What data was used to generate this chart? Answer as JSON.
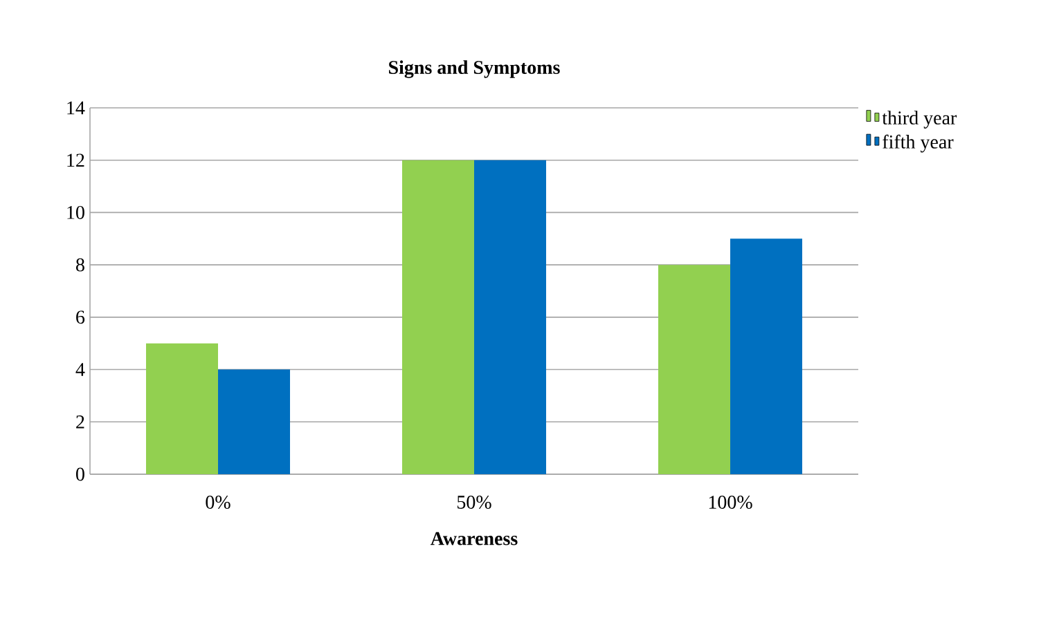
{
  "chart_data": {
    "type": "bar",
    "title": "Signs and Symptoms",
    "xlabel": "Awareness",
    "categories": [
      "0%",
      "50%",
      "100%"
    ],
    "series": [
      {
        "name": "third year",
        "color": "#92d050",
        "values": [
          5,
          12,
          8
        ]
      },
      {
        "name": "fifth year",
        "color": "#0070c0",
        "values": [
          4,
          12,
          9
        ]
      }
    ],
    "ylim": [
      0,
      14
    ],
    "yticks": [
      0,
      2,
      4,
      6,
      8,
      10,
      12,
      14
    ],
    "grid": "y",
    "legend": "top right"
  }
}
